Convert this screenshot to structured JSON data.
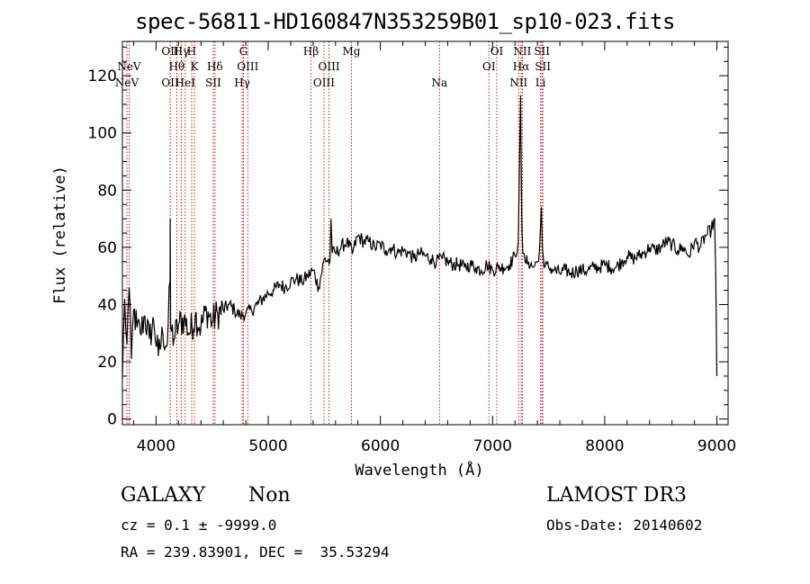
{
  "chart_data": {
    "type": "line",
    "title": "spec-56811-HD160847N353259B01_sp10-023.fits",
    "xlabel": "Wavelength (Å)",
    "ylabel": "Flux (relative)",
    "xlim": [
      3700,
      9100
    ],
    "ylim": [
      -2,
      132
    ],
    "x_ticks": [
      4000,
      5000,
      6000,
      7000,
      8000,
      9000
    ],
    "y_ticks": [
      0,
      20,
      40,
      60,
      80,
      100,
      120
    ],
    "series": [
      {
        "name": "spectrum",
        "x": [
          3700,
          3720,
          3740,
          3760,
          3780,
          3800,
          3830,
          3860,
          3900,
          3940,
          3980,
          4020,
          4060,
          4100,
          4125,
          4126,
          4130,
          4160,
          4200,
          4250,
          4300,
          4350,
          4400,
          4450,
          4500,
          4550,
          4600,
          4650,
          4700,
          4750,
          4800,
          4850,
          4900,
          4950,
          5000,
          5050,
          5100,
          5150,
          5200,
          5250,
          5300,
          5350,
          5400,
          5450,
          5500,
          5550,
          5560,
          5570,
          5600,
          5650,
          5700,
          5750,
          5800,
          5850,
          5900,
          5950,
          6000,
          6050,
          6100,
          6150,
          6200,
          6250,
          6300,
          6350,
          6400,
          6450,
          6500,
          6550,
          6600,
          6650,
          6700,
          6750,
          6800,
          6850,
          6900,
          6950,
          7000,
          7050,
          7100,
          7150,
          7200,
          7230,
          7250,
          7260,
          7270,
          7290,
          7320,
          7360,
          7400,
          7420,
          7435,
          7445,
          7460,
          7500,
          7550,
          7600,
          7650,
          7700,
          7750,
          7800,
          7850,
          7900,
          7950,
          8000,
          8050,
          8100,
          8150,
          8200,
          8250,
          8300,
          8350,
          8400,
          8450,
          8500,
          8550,
          8600,
          8650,
          8700,
          8750,
          8800,
          8850,
          8900,
          8950,
          8980,
          8990,
          9000
        ],
        "values": [
          14,
          42,
          26,
          46,
          21,
          38,
          32,
          30,
          36,
          28,
          34,
          22,
          30,
          26,
          48,
          70,
          32,
          28,
          33,
          35,
          30,
          36,
          32,
          38,
          34,
          37,
          38,
          40,
          38,
          36,
          37,
          38,
          40,
          42,
          44,
          45,
          47,
          46,
          48,
          49,
          48,
          50,
          52,
          46,
          56,
          55,
          70,
          58,
          58,
          60,
          62,
          58,
          64,
          62,
          62,
          60,
          61,
          59,
          60,
          58,
          59,
          58,
          56,
          58,
          57,
          56,
          55,
          56,
          55,
          54,
          54,
          53,
          54,
          53,
          52,
          54,
          52,
          53,
          53,
          54,
          57,
          62,
          113,
          70,
          58,
          55,
          55,
          53,
          55,
          60,
          74,
          60,
          53,
          53,
          52,
          51,
          52,
          51,
          52,
          52,
          52,
          53,
          53,
          54,
          53,
          53,
          55,
          57,
          56,
          57,
          58,
          60,
          59,
          60,
          62,
          61,
          59,
          60,
          57,
          62,
          60,
          64,
          66,
          70,
          50,
          15
        ]
      }
    ],
    "lines": [
      {
        "name": "NeV",
        "x": 3760,
        "row": 2
      },
      {
        "name": "NeV",
        "x": 3740,
        "row": 3
      },
      {
        "name": "OII",
        "x": 4126,
        "row": 1
      },
      {
        "name": "OII",
        "x": 4126,
        "row": 3
      },
      {
        "name": "Hγ",
        "x": 4225,
        "row": 1
      },
      {
        "name": "H",
        "x": 4318,
        "row": 1
      },
      {
        "name": "Hθ",
        "x": 4185,
        "row": 2
      },
      {
        "name": "K",
        "x": 4343,
        "row": 2
      },
      {
        "name": "HeI",
        "x": 4260,
        "row": 3
      },
      {
        "name": "Hδ",
        "x": 4525,
        "row": 2
      },
      {
        "name": "SII",
        "x": 4510,
        "row": 3
      },
      {
        "name": "G",
        "x": 4780,
        "row": 1
      },
      {
        "name": "OIII",
        "x": 4818,
        "row": 2
      },
      {
        "name": "Hγ",
        "x": 4768,
        "row": 3
      },
      {
        "name": "Hβ",
        "x": 5381,
        "row": 1
      },
      {
        "name": "Mg",
        "x": 5742,
        "row": 1
      },
      {
        "name": "OIII",
        "x": 5542,
        "row": 2
      },
      {
        "name": "OIII",
        "x": 5497,
        "row": 3
      },
      {
        "name": "Na",
        "x": 6527,
        "row": 3
      },
      {
        "name": "OI",
        "x": 7038,
        "row": 1
      },
      {
        "name": "OI",
        "x": 6968,
        "row": 2
      },
      {
        "name": "NII",
        "x": 7266,
        "row": 1
      },
      {
        "name": "Hα",
        "x": 7255,
        "row": 2
      },
      {
        "name": "NII",
        "x": 7233,
        "row": 3
      },
      {
        "name": "SII",
        "x": 7440,
        "row": 1
      },
      {
        "name": "SII",
        "x": 7448,
        "row": 2
      },
      {
        "name": "Li",
        "x": 7428,
        "row": 3
      }
    ],
    "line_color": "#c00000",
    "trace_color": "#000000"
  },
  "info": {
    "class": "GALAXY",
    "subclass": "Non",
    "cz": "cz = 0.1 ± -9999.0",
    "coords": "RA = 239.83901, DEC =  35.53294",
    "survey": "LAMOST DR3",
    "obs_date": "Obs-Date: 20140602"
  }
}
